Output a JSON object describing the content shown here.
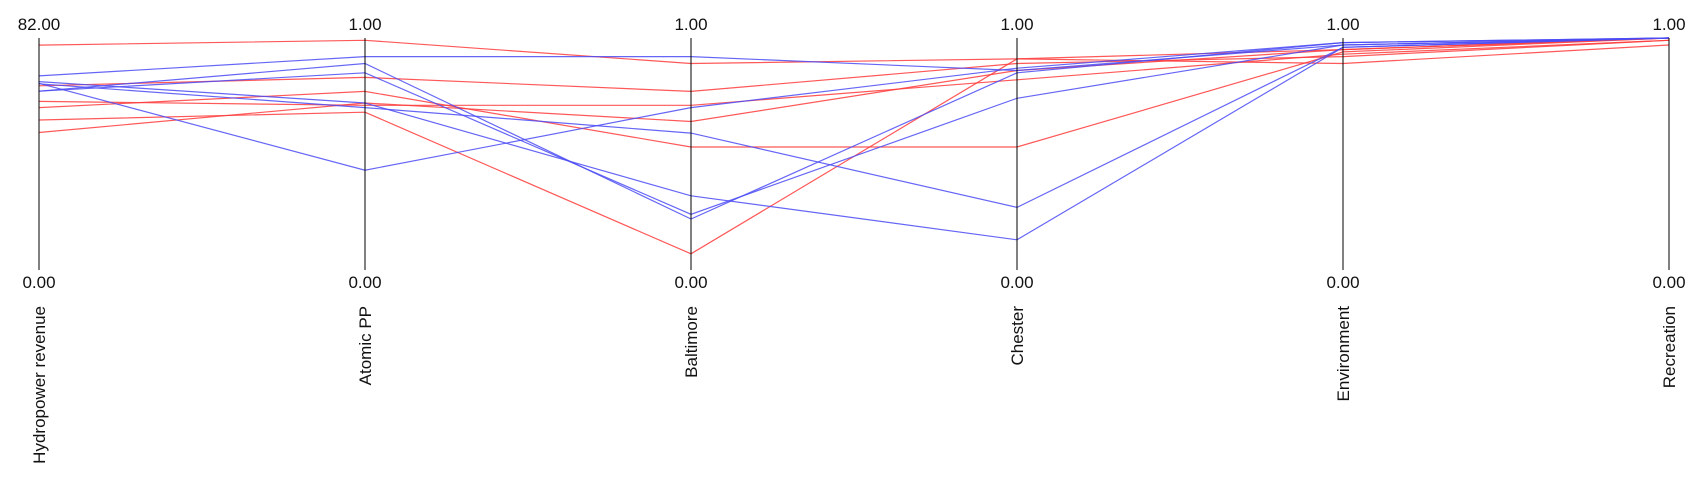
{
  "chart_data": {
    "type": "line",
    "kind": "parallel-coordinates",
    "grid": false,
    "legend": "none",
    "axes": [
      {
        "name": "Hydropower revenue",
        "min": 0,
        "max": 82,
        "min_label": "0.00",
        "max_label": "82.00"
      },
      {
        "name": "Atomic PP",
        "min": 0,
        "max": 1,
        "min_label": "0.00",
        "max_label": "1.00"
      },
      {
        "name": "Baltimore",
        "min": 0,
        "max": 1,
        "min_label": "0.00",
        "max_label": "1.00"
      },
      {
        "name": "Chester",
        "min": 0,
        "max": 1,
        "min_label": "0.00",
        "max_label": "1.00"
      },
      {
        "name": "Environment",
        "min": 0,
        "max": 1,
        "min_label": "0.00",
        "max_label": "1.00"
      },
      {
        "name": "Recreation",
        "min": 0,
        "max": 1,
        "min_label": "0.00",
        "max_label": "1.00"
      }
    ],
    "colors": {
      "red": "#ff3b3b",
      "blue": "#4b4bf5"
    },
    "series": [
      {
        "color": "red",
        "values": [
          79.5,
          0.99,
          0.89,
          0.91,
          0.89,
          0.97
        ]
      },
      {
        "color": "red",
        "values": [
          65.1,
          0.83,
          0.77,
          0.89,
          0.92,
          0.99
        ]
      },
      {
        "color": "red",
        "values": [
          59.6,
          0.71,
          0.71,
          0.82,
          0.93,
          0.99
        ]
      },
      {
        "color": "red",
        "values": [
          57.4,
          0.77,
          0.53,
          0.53,
          0.94,
          1.0
        ]
      },
      {
        "color": "red",
        "values": [
          53.0,
          0.68,
          0.07,
          0.91,
          0.95,
          1.0
        ]
      },
      {
        "color": "red",
        "values": [
          48.6,
          0.72,
          0.64,
          0.86,
          0.95,
          1.0
        ]
      },
      {
        "color": "blue",
        "values": [
          68.6,
          0.92,
          0.92,
          0.86,
          0.97,
          1.0
        ]
      },
      {
        "color": "blue",
        "values": [
          66.6,
          0.72,
          0.32,
          0.13,
          0.96,
          1.0
        ]
      },
      {
        "color": "blue",
        "values": [
          66.0,
          0.43,
          0.7,
          0.87,
          0.98,
          1.0
        ]
      },
      {
        "color": "blue",
        "values": [
          65.8,
          0.7,
          0.59,
          0.27,
          0.96,
          1.0
        ]
      },
      {
        "color": "blue",
        "values": [
          63.2,
          0.85,
          0.24,
          0.74,
          0.97,
          1.0
        ]
      },
      {
        "color": "blue",
        "values": [
          63.2,
          0.89,
          0.22,
          0.85,
          0.98,
          1.0
        ]
      }
    ]
  }
}
